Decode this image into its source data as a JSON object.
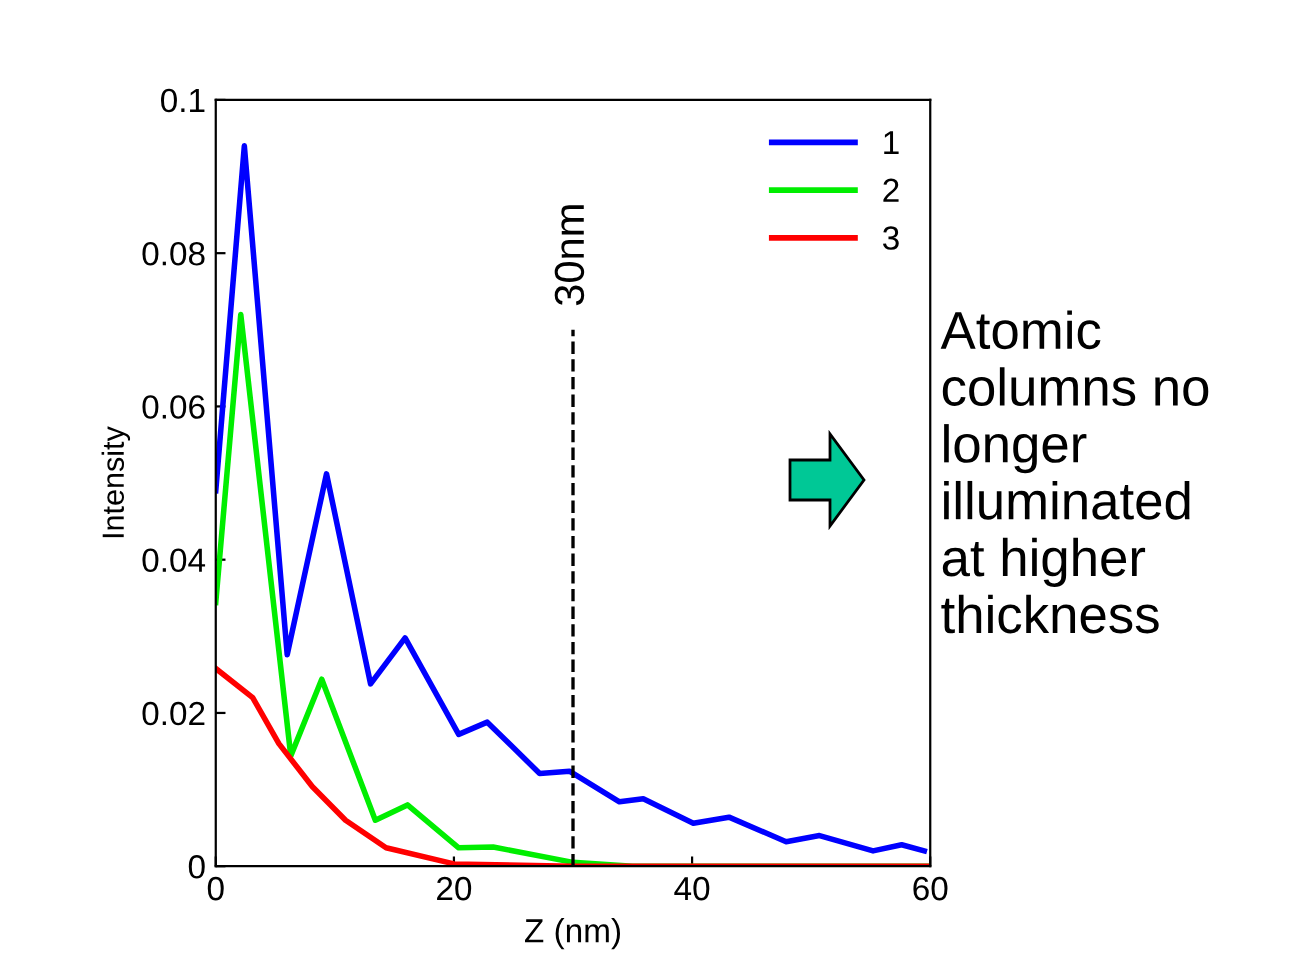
{
  "chart_data": {
    "type": "line",
    "xlabel": "Z (nm)",
    "ylabel": "Intensity",
    "xlim": [
      0,
      60
    ],
    "xticks": [
      0,
      20,
      40,
      60
    ],
    "ylim": [
      0,
      0.1
    ],
    "yticks": [
      0,
      0.02,
      0.04,
      0.06,
      0.08,
      0.1
    ],
    "grid": false,
    "legend": "top right",
    "marker": "none",
    "line_style": "solid",
    "series": [
      {
        "name": "1",
        "color": "#0000ff",
        "x": [
          0,
          2.4,
          6.0,
          9.3,
          13.0,
          15.9,
          20.4,
          22.8,
          27.2,
          29.7,
          33.9,
          35.9,
          40.1,
          43.1,
          47.9,
          50.7,
          55.2,
          57.6,
          59.5
        ],
        "values": [
          0.049,
          0.094,
          0.0276,
          0.0512,
          0.0238,
          0.0298,
          0.0172,
          0.0188,
          0.0121,
          0.0124,
          0.0084,
          0.0088,
          0.0056,
          0.0064,
          0.0032,
          0.004,
          0.002,
          0.0028,
          0.002
        ]
      },
      {
        "name": "2",
        "color": "#00ee00",
        "x": [
          0,
          2.1,
          6.3,
          8.9,
          13.4,
          16.1,
          20.4,
          23.3,
          30,
          35,
          60
        ],
        "values": [
          0.0344,
          0.072,
          0.0144,
          0.0244,
          0.006,
          0.008,
          0.0024,
          0.0025,
          0.0005,
          0,
          0
        ]
      },
      {
        "name": "3",
        "color": "#ff0000",
        "x": [
          0,
          3.1,
          5.3,
          8.1,
          10.9,
          14.3,
          20,
          30,
          60
        ],
        "values": [
          0.0258,
          0.022,
          0.016,
          0.0104,
          0.006,
          0.0024,
          0.0003,
          0,
          0
        ]
      }
    ],
    "ref_lines": [
      {
        "axis": "x",
        "value": 30,
        "label": "30nm",
        "color": "#000000",
        "line_style": "dashed"
      }
    ],
    "annotations": [
      "Atomic\ncolumns no\nlonger\nilluminated\nat higher\nthickness"
    ]
  }
}
